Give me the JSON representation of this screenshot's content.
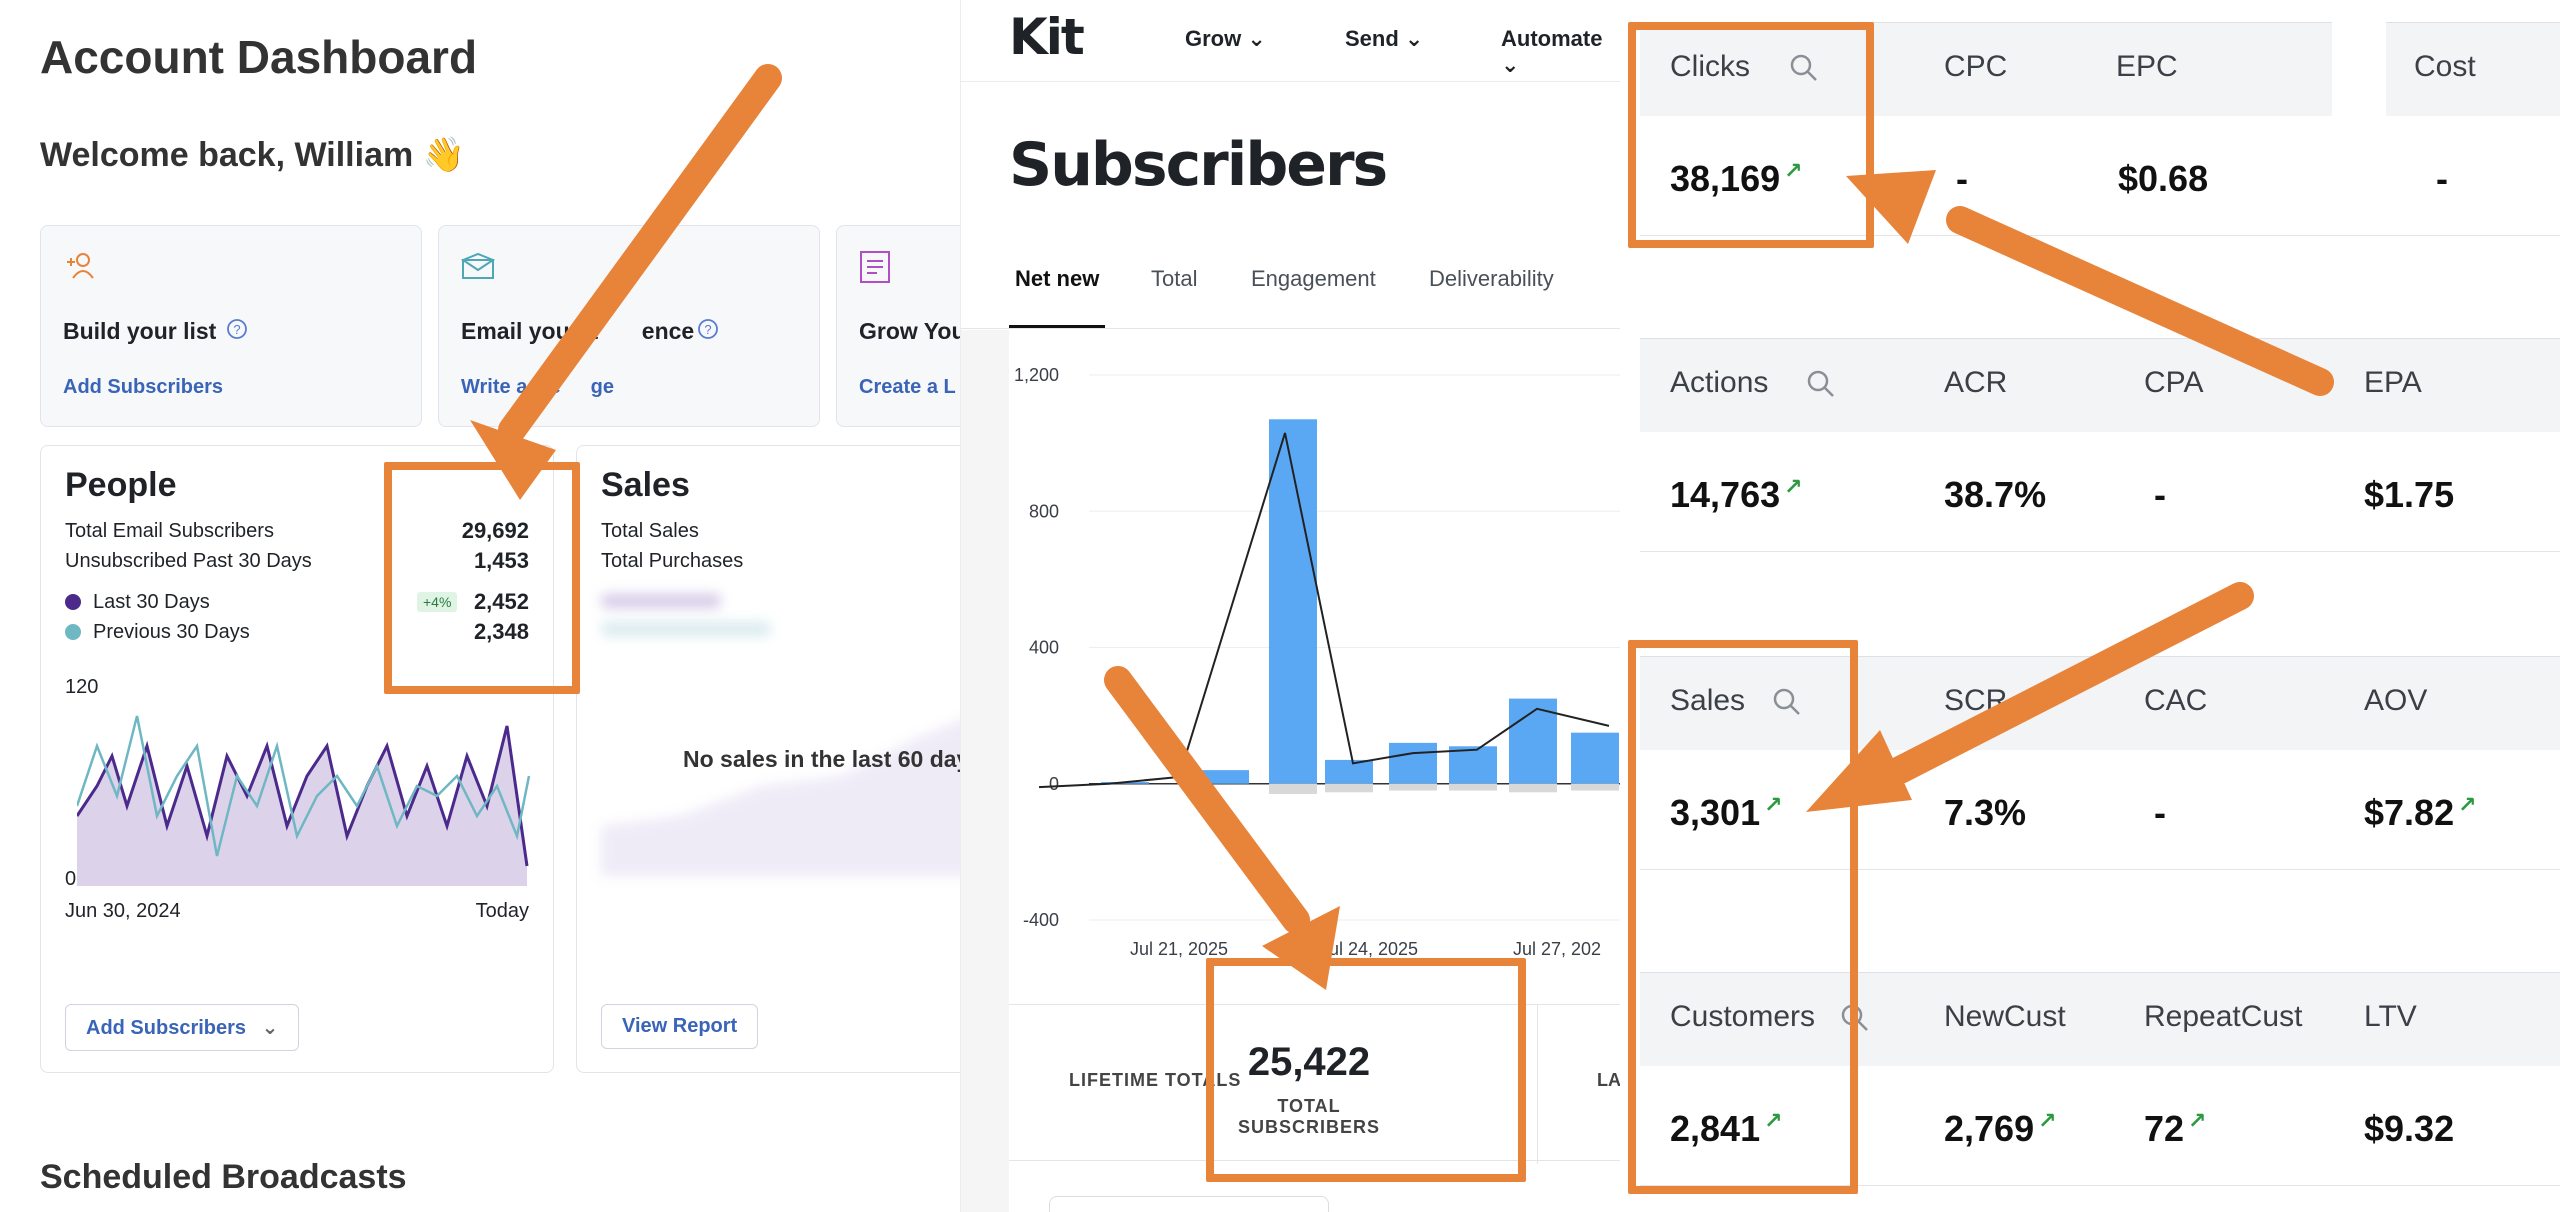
{
  "dashboard": {
    "title": "Account Dashboard",
    "welcome": "Welcome back, William 👋",
    "quick_actions": [
      {
        "title": "Build your list",
        "link": "Add Subscribers"
      },
      {
        "title": "Email your a",
        "title_rest": "ence",
        "link": "Write a Me",
        "link_rest": "ge"
      },
      {
        "title": "Grow You",
        "link": "Create a L"
      }
    ],
    "people": {
      "title": "People",
      "stats": [
        {
          "label": "Total Email Subscribers",
          "value": "29,692"
        },
        {
          "label": "Unsubscribed Past 30 Days",
          "value": "1,453"
        }
      ],
      "legend": [
        {
          "label": "Last 30 Days",
          "value": "2,452",
          "badge": "+4%",
          "color": "#4b2a8c"
        },
        {
          "label": "Previous 30 Days",
          "value": "2,348",
          "color": "#6fb7c2"
        }
      ],
      "y_top": "120",
      "y_bottom": "0",
      "x_start": "Jun 30, 2024",
      "x_end": "Today",
      "button": "Add Subscribers"
    },
    "sales": {
      "title": "Sales",
      "stats": [
        "Total Sales",
        "Total Purchases"
      ],
      "empty_message": "No sales in the last 60 day",
      "button": "View Report"
    },
    "scheduled_title": "Scheduled Broadcasts"
  },
  "kit": {
    "logo": "Kit",
    "nav": [
      "Grow",
      "Send",
      "Automate"
    ],
    "page_title": "Subscribers",
    "tabs": [
      "Net new",
      "Total",
      "Engagement",
      "Deliverability"
    ],
    "active_tab": "Net new",
    "lifetime_label": "LIFETIME TOTALS",
    "total_value": "25,422",
    "total_label": "TOTAL SUBSCRIBERS",
    "right_cut_label": "LA"
  },
  "chart_data": {
    "type": "bar",
    "x_tick_labels": [
      "Jul 21, 2025",
      "Jul 24, 2025",
      "Jul 27, 202"
    ],
    "ylim": [
      -400,
      1200
    ],
    "y_ticks": [
      "1,200",
      "800",
      "400",
      "0",
      "-400"
    ],
    "series": [
      {
        "values": [
          5,
          40,
          1070,
          70,
          120,
          110,
          250,
          150
        ]
      },
      {
        "values": [
          0,
          0,
          -30,
          -25,
          -20,
          -20,
          -25,
          -20
        ]
      },
      {
        "values": [
          -10,
          0,
          20,
          1030,
          60,
          90,
          100,
          220,
          170
        ]
      }
    ]
  },
  "metrics": {
    "groups": [
      {
        "headers": [
          "Clicks",
          "CPC",
          "EPC",
          "Cost"
        ],
        "values": [
          "38,169",
          "-",
          "$0.68",
          "-"
        ],
        "trend_up": [
          true,
          false,
          false,
          false
        ]
      },
      {
        "headers": [
          "Actions",
          "ACR",
          "CPA",
          "EPA"
        ],
        "values": [
          "14,763",
          "38.7%",
          "-",
          "$1.75"
        ],
        "trend_up": [
          true,
          false,
          false,
          false
        ]
      },
      {
        "headers": [
          "Sales",
          "SCR",
          "CAC",
          "AOV"
        ],
        "values": [
          "3,301",
          "7.3%",
          "-",
          "$7.82"
        ],
        "trend_up": [
          true,
          false,
          false,
          true
        ]
      },
      {
        "headers": [
          "Customers",
          "NewCust",
          "RepeatCust",
          "LTV"
        ],
        "values": [
          "2,841",
          "2,769",
          "72",
          "$9.32"
        ],
        "trend_up": [
          true,
          true,
          true,
          false
        ]
      }
    ]
  },
  "colors": {
    "accent_orange": "#e8833a",
    "kit_bar_blue": "#5aa8f4",
    "dashboard_link": "#3a64b8",
    "trend_green": "#2c9a3f"
  }
}
